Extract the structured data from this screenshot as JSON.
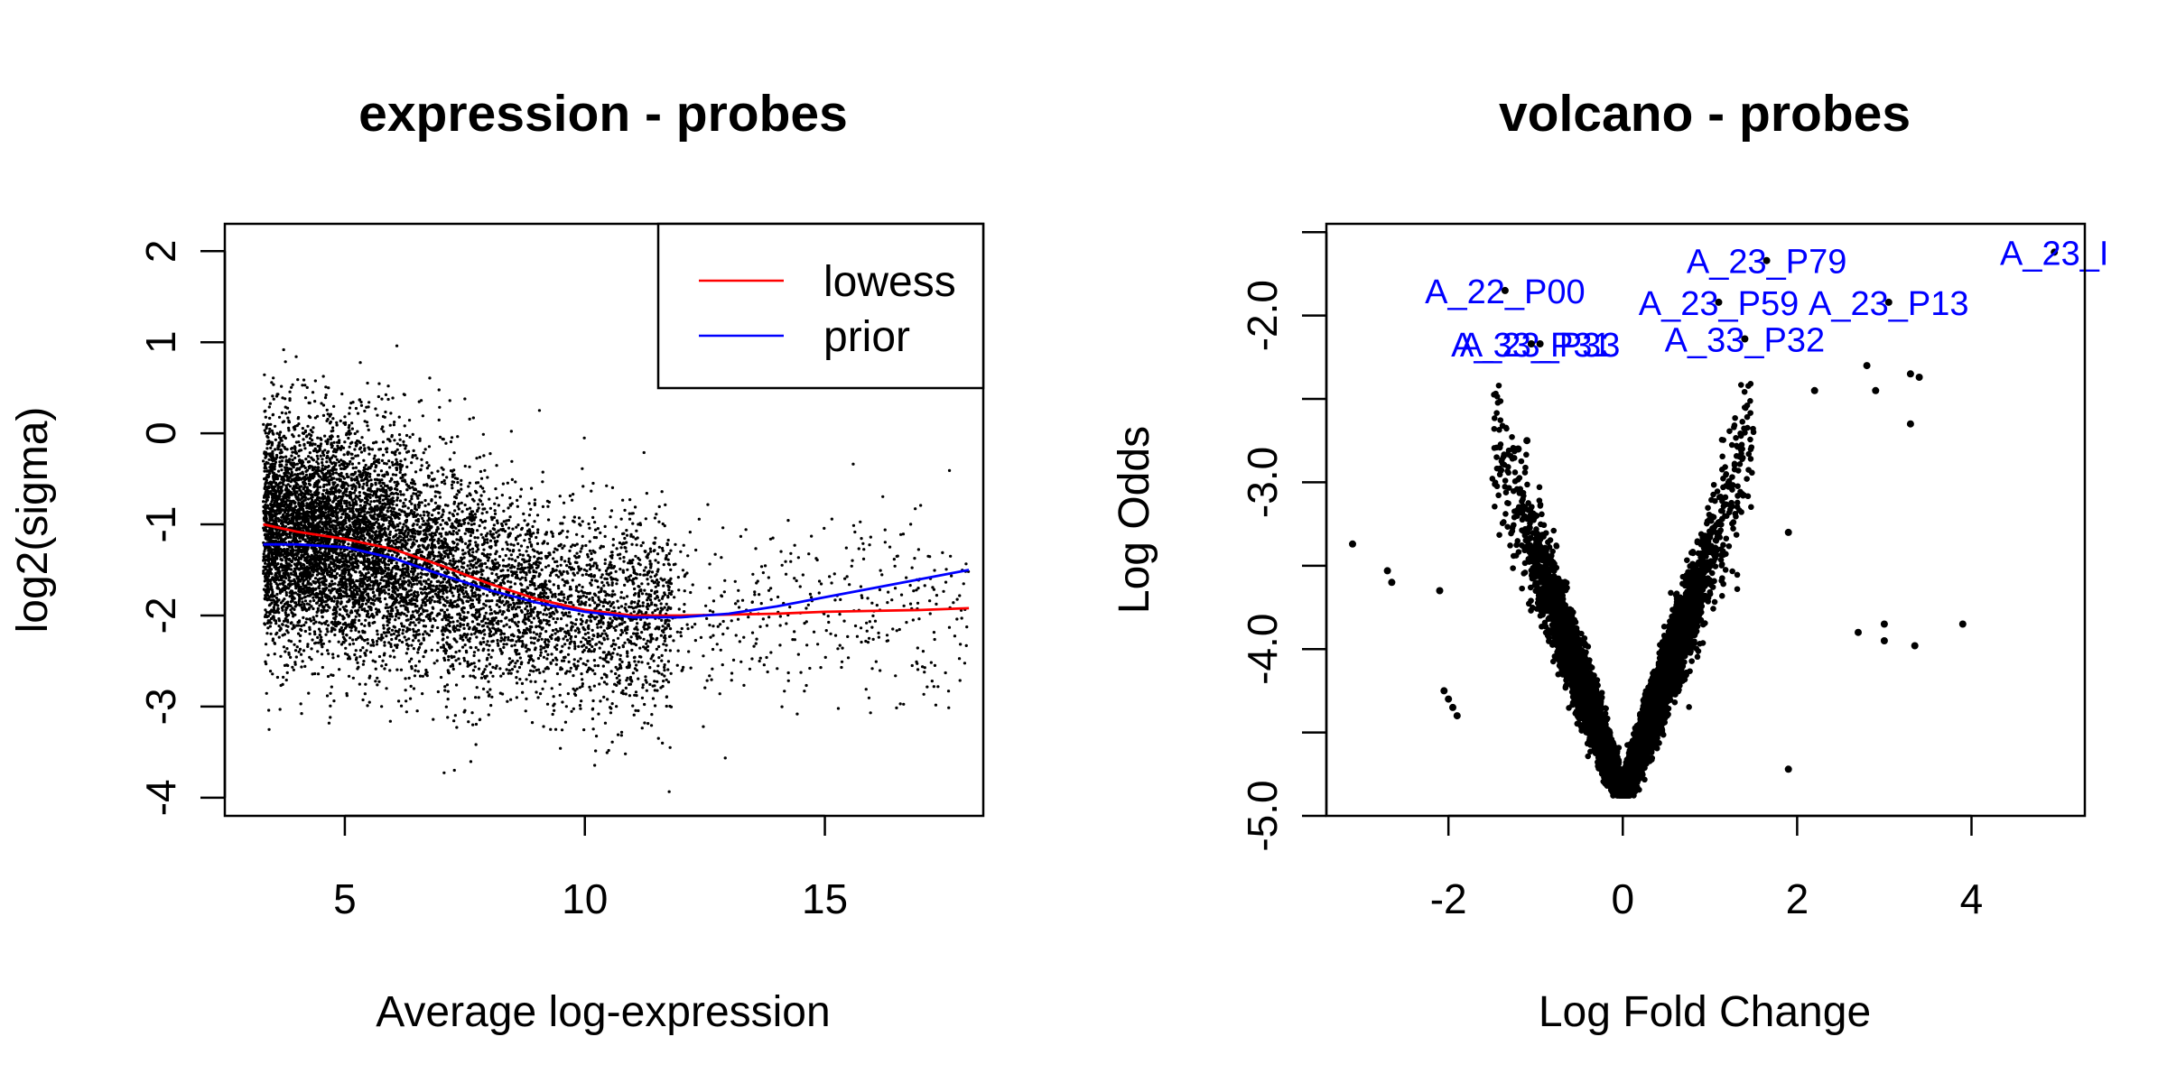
{
  "chart_data": [
    {
      "type": "scatter",
      "title": "expression - probes",
      "xlabel": "Average log-expression",
      "ylabel": "log2(sigma)",
      "xlim": [
        2.5,
        18.3
      ],
      "ylim": [
        -4.2,
        2.3
      ],
      "xticks": [
        5,
        10,
        15
      ],
      "yticks": [
        -4,
        -3,
        -2,
        -1,
        0,
        1,
        2
      ],
      "grid": false,
      "legend_position": "top-right",
      "point_color": "#000000",
      "point_cloud_note": "dense cloud of thousands of probes; x spans ~3.3 to 18, y spans ~-4 to 2.1",
      "series": [
        {
          "name": "lowess",
          "color": "#ff0000",
          "x": [
            3.3,
            4,
            5,
            6,
            7,
            8,
            9,
            10,
            11,
            12,
            13,
            14,
            15,
            16,
            17,
            18
          ],
          "y": [
            -1.0,
            -1.08,
            -1.16,
            -1.27,
            -1.45,
            -1.65,
            -1.82,
            -1.94,
            -2.0,
            -2.0,
            -1.99,
            -1.98,
            -1.96,
            -1.95,
            -1.94,
            -1.92
          ]
        },
        {
          "name": "prior",
          "color": "#0000ff",
          "x": [
            3.3,
            4,
            5,
            6,
            7,
            8,
            9,
            10,
            11,
            12,
            13,
            14,
            15,
            16,
            17,
            18
          ],
          "y": [
            -1.22,
            -1.22,
            -1.25,
            -1.37,
            -1.55,
            -1.72,
            -1.86,
            -1.96,
            -2.02,
            -2.02,
            -1.98,
            -1.9,
            -1.8,
            -1.7,
            -1.6,
            -1.5
          ]
        }
      ]
    },
    {
      "type": "scatter",
      "title": "volcano - probes",
      "xlabel": "Log Fold Change",
      "ylabel": "Log Odds",
      "xlim": [
        -3.4,
        5.3
      ],
      "ylim": [
        -5.0,
        -1.45
      ],
      "xticks": [
        -2,
        0,
        2,
        4
      ],
      "yticks": [
        -5.0,
        -4.5,
        -4.0,
        -3.5,
        -3.0,
        -2.5,
        -2.0,
        -1.5
      ],
      "ytick_labels": [
        "-5.0",
        "",
        "-4.0",
        "",
        "-3.0",
        "",
        "-2.0",
        ""
      ],
      "grid": false,
      "point_color": "#000000",
      "point_cloud_note": "V-shaped cloud with minimum near (0, -4.9)",
      "outliers": {
        "x": [
          -3.1,
          -2.7,
          -2.65,
          -2.1,
          -2.05,
          -2.0,
          -1.95,
          -1.9,
          -1.1,
          -1.2,
          1.9,
          2.2,
          2.8,
          2.9,
          3.3,
          3.4,
          3.3,
          3.0,
          3.9,
          2.7,
          3.0,
          3.35,
          1.9
        ],
        "y": [
          -3.37,
          -3.53,
          -3.6,
          -3.65,
          -4.25,
          -4.3,
          -4.35,
          -4.4,
          -2.75,
          -2.8,
          -3.3,
          -2.45,
          -2.3,
          -2.45,
          -2.35,
          -2.37,
          -2.65,
          -3.85,
          -3.85,
          -3.9,
          -3.95,
          -3.98,
          -4.72
        ]
      },
      "annotations": [
        {
          "label": "A_23_P79",
          "x": 1.65,
          "y": -1.67
        },
        {
          "label": "A_23_I",
          "x": 4.95,
          "y": -1.62
        },
        {
          "label": "A_22_P00",
          "x": -1.35,
          "y": -1.85
        },
        {
          "label": "A_23_P59",
          "x": 1.1,
          "y": -1.92
        },
        {
          "label": "A_23_P13",
          "x": 3.05,
          "y": -1.92
        },
        {
          "label": "A_33_P32",
          "x": 1.4,
          "y": -2.14
        },
        {
          "label": "A_23_P33",
          "x": -0.95,
          "y": -2.17
        },
        {
          "label": "A_33_P31",
          "x": -1.05,
          "y": -2.17
        }
      ],
      "annotation_color": "#0000ff"
    }
  ]
}
